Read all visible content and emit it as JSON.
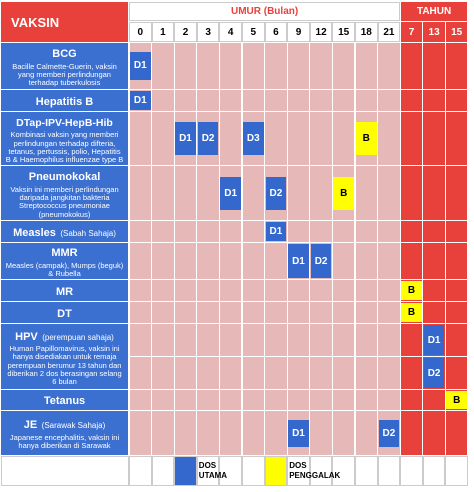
{
  "header": {
    "title": "VAKSIN",
    "months_label": "UMUR (Bulan)",
    "years_label": "TAHUN",
    "ages": [
      0,
      1,
      2,
      3,
      4,
      5,
      6,
      9,
      12,
      15,
      18,
      21,
      7,
      13,
      15
    ]
  },
  "colors": {
    "vaccine": "#3b6fd0",
    "months": "#e6b9b8",
    "years": "#e8413c"
  },
  "vaccines": [
    {
      "name": "BCG",
      "note": "Bacille Calmette-Guerin, vaksin yang memberi perlindungan terhadap tuberkulosis",
      "rows": [
        [
          {
            "text": "D1",
            "color": "#3568cc"
          },
          null,
          null,
          null,
          null,
          null,
          null,
          null,
          null,
          null,
          null,
          null,
          null,
          null,
          null
        ]
      ]
    },
    {
      "name": "Hepatitis B",
      "rows": [
        [
          {
            "text": "D1",
            "color": "#3568cc"
          },
          null,
          null,
          null,
          null,
          null,
          null,
          null,
          null,
          null,
          null,
          null,
          null,
          null,
          null
        ]
      ]
    },
    {
      "name": "DTap-IPV-HepB-Hib",
      "note": "Kombinasi vaksin yang memberi perlindungan terhadap difteria, tetanus, pertussis, polio, Hepatitis B & Haemophilus influenzae type B",
      "rows": [
        [
          null,
          null,
          {
            "text": "D1",
            "color": "#3568cc"
          },
          {
            "text": "D2",
            "color": "#3568cc"
          },
          null,
          {
            "text": "D3",
            "color": "#3568cc"
          },
          null,
          null,
          null,
          null,
          {
            "text": "B",
            "color": "#ffff00"
          },
          null,
          null,
          null,
          null
        ]
      ]
    },
    {
      "name": "Pneumokokal",
      "note": "Vaksin ini memberi perlindungan daripada jangkitan bakteria Streptococcus pneumoniae (pneumokokus)",
      "rows": [
        [
          null,
          null,
          null,
          null,
          {
            "text": "D1",
            "color": "#3568cc"
          },
          null,
          {
            "text": "D2",
            "color": "#3568cc"
          },
          null,
          null,
          {
            "text": "B",
            "color": "#ffff00"
          },
          null,
          null,
          null,
          null,
          null
        ]
      ]
    },
    {
      "name": "Measles",
      "qualifier": "(Sabah Sahaja)",
      "rows": [
        [
          null,
          null,
          null,
          null,
          null,
          null,
          {
            "text": "D1",
            "color": "#3568cc"
          },
          null,
          null,
          null,
          null,
          null,
          null,
          null,
          null
        ]
      ]
    },
    {
      "name": "MMR",
      "note": "Measles (campak), Mumps (beguk) & Rubella",
      "rows": [
        [
          null,
          null,
          null,
          null,
          null,
          null,
          null,
          {
            "text": "D1",
            "color": "#3568cc"
          },
          {
            "text": "D2",
            "color": "#3568cc"
          },
          null,
          null,
          null,
          null,
          null,
          null
        ]
      ]
    },
    {
      "name": "MR",
      "rows": [
        [
          null,
          null,
          null,
          null,
          null,
          null,
          null,
          null,
          null,
          null,
          null,
          null,
          {
            "text": "B",
            "color": "#ffff00"
          },
          null,
          null
        ]
      ]
    },
    {
      "name": "DT",
      "rows": [
        [
          null,
          null,
          null,
          null,
          null,
          null,
          null,
          null,
          null,
          null,
          null,
          null,
          {
            "text": "B",
            "color": "#ffff00"
          },
          null,
          null
        ]
      ]
    },
    {
      "name": "HPV",
      "qualifier": "(perempuan sahaja)",
      "note": "Human Papillomavirus, vaksin ini hanya disediakan untuk remaja perempuan berumur 13 tahun dan diberikan 2 dos berasingan selang 6 bulan",
      "rows": [
        [
          null,
          null,
          null,
          null,
          null,
          null,
          null,
          null,
          null,
          null,
          null,
          null,
          null,
          {
            "text": "D1",
            "color": "#3568cc"
          },
          null
        ],
        [
          null,
          null,
          null,
          null,
          null,
          null,
          null,
          null,
          null,
          null,
          null,
          null,
          null,
          {
            "text": "D2",
            "color": "#3568cc"
          },
          null
        ]
      ]
    },
    {
      "name": "Tetanus",
      "rows": [
        [
          null,
          null,
          null,
          null,
          null,
          null,
          null,
          null,
          null,
          null,
          null,
          null,
          null,
          null,
          {
            "text": "B",
            "color": "#ffff00"
          }
        ]
      ]
    },
    {
      "name": "JE",
      "qualifier": "(Sarawak Sahaja)",
      "note": "Japanese encephalitis, vaksin ini hanya diberikan di Sarawak",
      "rows": [
        [
          null,
          null,
          null,
          null,
          null,
          null,
          null,
          {
            "text": "D1",
            "color": "#3568cc"
          },
          null,
          null,
          null,
          {
            "text": "D2",
            "color": "#3568cc"
          },
          null,
          null,
          null
        ]
      ]
    }
  ],
  "legend": [
    {
      "label": "DOS UTAMA",
      "color": "#3568cc"
    },
    {
      "label": "DOS PENGGALAK",
      "color": "#ffff00"
    }
  ]
}
